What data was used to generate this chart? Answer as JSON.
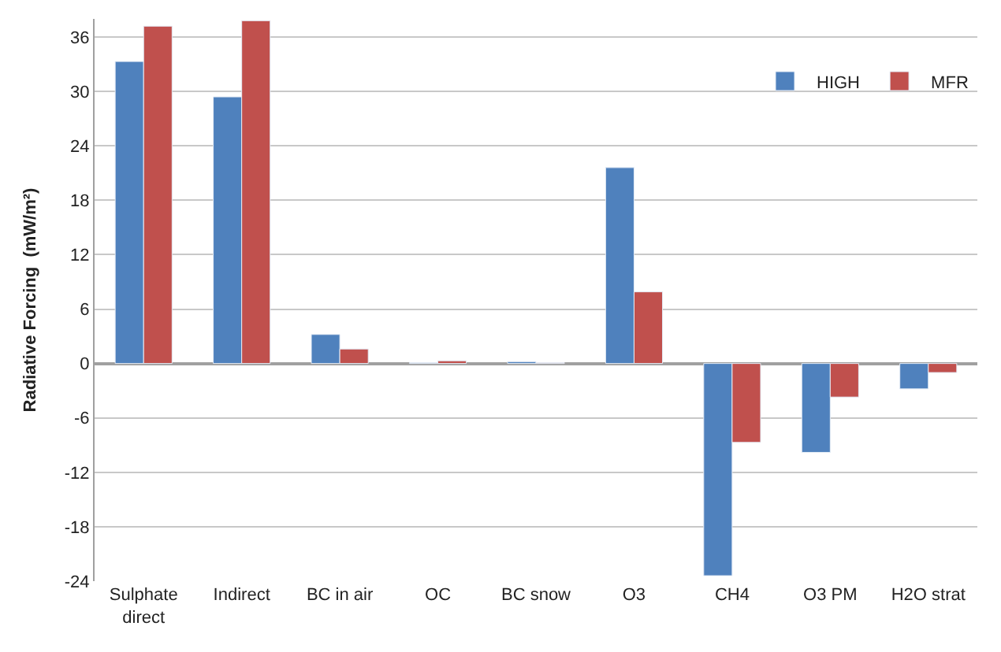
{
  "chart_data": {
    "type": "bar",
    "ylabel": "Radiative Forcing  (mW/m²)",
    "categories": [
      "Sulphate direct",
      "Indirect",
      "BC in air",
      "OC",
      "BC snow",
      "O3",
      "CH4",
      "O3 PM",
      "H2O strat"
    ],
    "series": [
      {
        "name": "HIGH",
        "color": "#4f81bd",
        "values": [
          33.3,
          29.4,
          3.2,
          0.1,
          0.2,
          21.6,
          -23.4,
          -9.8,
          -2.8
        ]
      },
      {
        "name": "MFR",
        "color": "#c0504d",
        "values": [
          37.2,
          37.8,
          1.6,
          0.3,
          0.1,
          7.9,
          -8.7,
          -3.7,
          -1.0
        ]
      }
    ],
    "ylim": [
      -24,
      38
    ],
    "yticks": [
      -24,
      -18,
      -12,
      -6,
      0,
      6,
      12,
      18,
      24,
      30,
      36
    ],
    "grid": "y",
    "legend": "top right"
  }
}
